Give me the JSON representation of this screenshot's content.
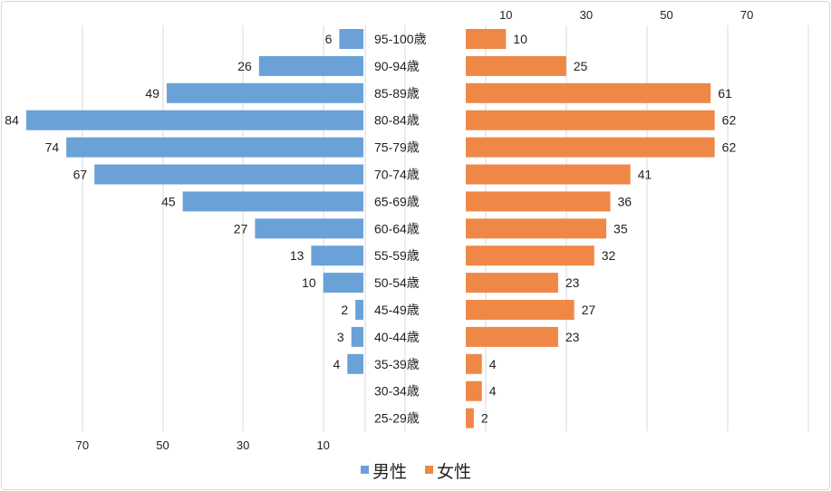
{
  "chart_data": {
    "type": "bar",
    "subtype": "population-pyramid",
    "title": "",
    "categories": [
      "95-100歳",
      "90-94歳",
      "85-89歳",
      "80-84歳",
      "75-79歳",
      "70-74歳",
      "65-69歳",
      "60-64歳",
      "55-59歳",
      "50-54歳",
      "45-49歳",
      "40-44歳",
      "35-39歳",
      "30-34歳",
      "25-29歳"
    ],
    "series": [
      {
        "name": "男性",
        "color": "#6aa2d8",
        "side": "left",
        "values": [
          6,
          26,
          49,
          84,
          74,
          67,
          45,
          27,
          13,
          10,
          2,
          3,
          4,
          null,
          null
        ]
      },
      {
        "name": "女性",
        "color": "#ef8847",
        "side": "right",
        "values": [
          10,
          25,
          61,
          62,
          62,
          41,
          36,
          35,
          32,
          23,
          27,
          23,
          4,
          4,
          2
        ]
      }
    ],
    "left_axis": {
      "ticks": [
        "70",
        "50",
        "30",
        "10"
      ],
      "position": "bottom",
      "reversed": true
    },
    "right_axis": {
      "ticks": [
        "10",
        "30",
        "50",
        "70"
      ],
      "position": "top"
    },
    "grid": true,
    "legend": {
      "position": "bottom",
      "entries": [
        "男性",
        "女性"
      ]
    }
  }
}
